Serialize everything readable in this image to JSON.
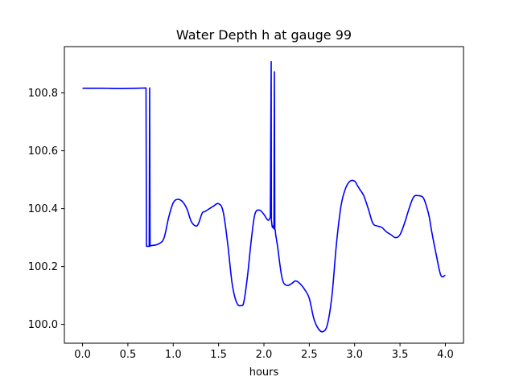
{
  "chart_data": {
    "type": "line",
    "title": "Water Depth h at gauge 99",
    "xlabel": "hours",
    "ylabel": "",
    "xlim": [
      -0.2,
      4.2
    ],
    "ylim": [
      99.935,
      100.96
    ],
    "xticks": [
      0.0,
      0.5,
      1.0,
      1.5,
      2.0,
      2.5,
      3.0,
      3.5,
      4.0
    ],
    "xtick_labels": [
      "0.0",
      "0.5",
      "1.0",
      "1.5",
      "2.0",
      "2.5",
      "3.0",
      "3.5",
      "4.0"
    ],
    "yticks": [
      100.0,
      100.2,
      100.4,
      100.6,
      100.8
    ],
    "ytick_labels": [
      "100.0",
      "100.2",
      "100.4",
      "100.6",
      "100.8"
    ],
    "grid": false,
    "legend": "none",
    "series": [
      {
        "color": "#0000ff",
        "x": [
          0.0,
          0.2,
          0.45,
          0.6,
          0.7,
          0.705,
          0.72,
          0.735,
          0.74,
          0.745,
          0.75,
          0.8,
          0.85,
          0.9,
          0.95,
          1.0,
          1.05,
          1.1,
          1.15,
          1.2,
          1.25,
          1.28,
          1.32,
          1.35,
          1.4,
          1.45,
          1.5,
          1.55,
          1.6,
          1.65,
          1.7,
          1.75,
          1.78,
          1.82,
          1.86,
          1.9,
          1.95,
          2.0,
          2.03,
          2.05,
          2.07,
          2.08,
          2.082,
          2.09,
          2.095,
          2.1,
          2.11,
          2.115,
          2.12,
          2.125,
          2.13,
          2.15,
          2.2,
          2.25,
          2.3,
          2.35,
          2.4,
          2.45,
          2.5,
          2.55,
          2.6,
          2.65,
          2.7,
          2.75,
          2.8,
          2.85,
          2.9,
          2.95,
          3.0,
          3.03,
          3.06,
          3.1,
          3.15,
          3.2,
          3.25,
          3.3,
          3.35,
          3.4,
          3.45,
          3.5,
          3.55,
          3.6,
          3.65,
          3.7,
          3.75,
          3.78,
          3.82,
          3.85,
          3.9,
          3.95,
          4.0
        ],
        "y": [
          100.816,
          100.816,
          100.815,
          100.816,
          100.817,
          100.27,
          100.27,
          100.27,
          100.817,
          100.27,
          100.272,
          100.274,
          100.28,
          100.3,
          100.37,
          100.42,
          100.432,
          100.425,
          100.4,
          100.355,
          100.34,
          100.35,
          100.385,
          100.39,
          100.4,
          100.41,
          100.417,
          100.39,
          100.28,
          100.14,
          100.075,
          100.065,
          100.08,
          100.17,
          100.29,
          100.38,
          100.395,
          100.38,
          100.365,
          100.36,
          100.37,
          100.908,
          100.36,
          100.34,
          100.335,
          100.34,
          100.33,
          100.873,
          100.33,
          100.325,
          100.31,
          100.27,
          100.16,
          100.135,
          100.14,
          100.15,
          100.14,
          100.12,
          100.09,
          100.02,
          99.985,
          99.975,
          100.0,
          100.1,
          100.28,
          100.41,
          100.47,
          100.495,
          100.495,
          100.48,
          100.465,
          100.445,
          100.4,
          100.35,
          100.34,
          100.335,
          100.32,
          100.31,
          100.3,
          100.31,
          100.35,
          100.4,
          100.44,
          100.445,
          100.44,
          100.42,
          100.375,
          100.32,
          100.24,
          100.17,
          100.17
        ]
      }
    ]
  }
}
